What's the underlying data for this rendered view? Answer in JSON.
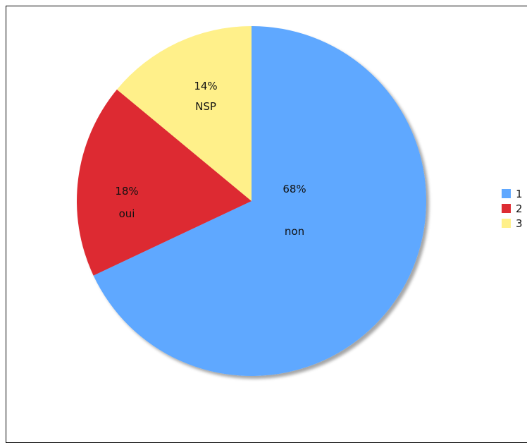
{
  "chart_data": {
    "type": "pie",
    "slices": [
      {
        "name": "1",
        "label": "non",
        "value": 68,
        "pct_label": "68%",
        "color": "#5fa8ff"
      },
      {
        "name": "2",
        "label": "oui",
        "value": 18,
        "pct_label": "18%",
        "color": "#dd2c33"
      },
      {
        "name": "3",
        "label": "NSP",
        "value": 14,
        "pct_label": "14%",
        "color": "#fff08a"
      }
    ],
    "start": "top",
    "direction": "clockwise",
    "legend": {
      "placement": "right",
      "entries": [
        "1",
        "2",
        "3"
      ]
    }
  }
}
